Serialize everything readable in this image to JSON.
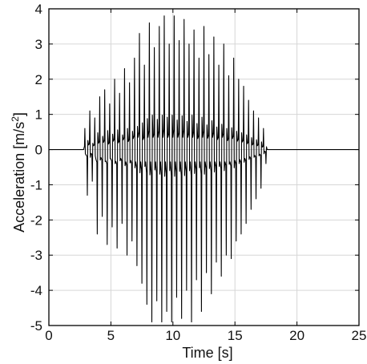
{
  "chart_data": {
    "type": "line",
    "xlabel": "Time [s]",
    "ylabel_main": "Acceleration [m/s",
    "ylabel_sup": "2",
    "ylabel_end": "]",
    "xlim": [
      0,
      25
    ],
    "ylim": [
      -5,
      4
    ],
    "xticks": [
      0,
      5,
      10,
      15,
      20,
      25
    ],
    "yticks": [
      -5,
      -4,
      -3,
      -2,
      -1,
      0,
      1,
      2,
      3,
      4
    ],
    "grid": true,
    "signal": {
      "sample_interval_s": 0.5,
      "t_start": 2.8,
      "t_end": 17.6,
      "positive_peaks": [
        [
          2.9,
          0.6
        ],
        [
          3.3,
          1.1
        ],
        [
          3.7,
          0.9
        ],
        [
          4.1,
          1.5
        ],
        [
          4.5,
          1.7
        ],
        [
          4.9,
          1.3
        ],
        [
          5.3,
          2.0
        ],
        [
          5.7,
          1.6
        ],
        [
          6.1,
          2.3
        ],
        [
          6.5,
          1.9
        ],
        [
          6.9,
          2.6
        ],
        [
          7.3,
          3.3
        ],
        [
          7.7,
          2.4
        ],
        [
          8.1,
          3.6
        ],
        [
          8.5,
          2.9
        ],
        [
          8.9,
          3.5
        ],
        [
          9.3,
          3.8
        ],
        [
          9.7,
          3.0
        ],
        [
          10.1,
          3.8
        ],
        [
          10.5,
          3.1
        ],
        [
          10.9,
          3.7
        ],
        [
          11.3,
          3.0
        ],
        [
          11.7,
          3.4
        ],
        [
          12.1,
          2.6
        ],
        [
          12.5,
          3.5
        ],
        [
          12.9,
          2.7
        ],
        [
          13.3,
          3.2
        ],
        [
          13.7,
          2.4
        ],
        [
          14.1,
          3.0
        ],
        [
          14.5,
          2.1
        ],
        [
          14.9,
          2.6
        ],
        [
          15.3,
          2.0
        ],
        [
          15.7,
          1.8
        ],
        [
          16.1,
          1.4
        ],
        [
          16.5,
          1.1
        ],
        [
          16.9,
          0.9
        ],
        [
          17.3,
          0.6
        ]
      ],
      "negative_peaks": [
        [
          3.1,
          -1.3
        ],
        [
          3.5,
          -0.9
        ],
        [
          3.9,
          -2.4
        ],
        [
          4.3,
          -1.9
        ],
        [
          4.7,
          -2.7
        ],
        [
          5.1,
          -2.2
        ],
        [
          5.5,
          -2.8
        ],
        [
          5.9,
          -2.1
        ],
        [
          6.3,
          -3.0
        ],
        [
          6.7,
          -2.6
        ],
        [
          7.1,
          -3.3
        ],
        [
          7.5,
          -3.8
        ],
        [
          7.9,
          -4.4
        ],
        [
          8.3,
          -4.9
        ],
        [
          8.7,
          -4.3
        ],
        [
          9.1,
          -4.9
        ],
        [
          9.5,
          -4.6
        ],
        [
          9.9,
          -4.9
        ],
        [
          10.3,
          -4.2
        ],
        [
          10.7,
          -4.8
        ],
        [
          11.1,
          -4.0
        ],
        [
          11.5,
          -4.9
        ],
        [
          11.9,
          -3.7
        ],
        [
          12.3,
          -4.6
        ],
        [
          12.7,
          -3.5
        ],
        [
          13.1,
          -4.1
        ],
        [
          13.5,
          -3.2
        ],
        [
          13.9,
          -3.6
        ],
        [
          14.3,
          -3.0
        ],
        [
          14.7,
          -3.1
        ],
        [
          15.1,
          -2.6
        ],
        [
          15.5,
          -2.4
        ],
        [
          15.9,
          -2.1
        ],
        [
          16.3,
          -1.7
        ],
        [
          16.7,
          -1.4
        ],
        [
          17.1,
          -1.1
        ],
        [
          17.5,
          -0.4
        ]
      ]
    }
  }
}
